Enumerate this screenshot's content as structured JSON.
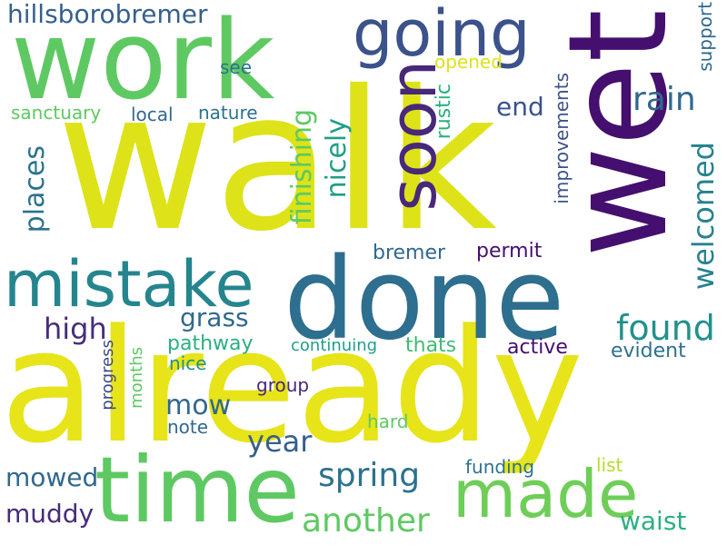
{
  "words": [
    {
      "text": "walk",
      "color": "#dde318"
    },
    {
      "text": "already",
      "color": "#e7e419"
    },
    {
      "text": "work",
      "color": "#5ec962"
    },
    {
      "text": "wet",
      "color": "#440f6e"
    },
    {
      "text": "done",
      "color": "#2e6e8e"
    },
    {
      "text": "time",
      "color": "#5ec962"
    },
    {
      "text": "going",
      "color": "#3b528b"
    },
    {
      "text": "mistake",
      "color": "#25858e"
    },
    {
      "text": "made",
      "color": "#6ece58"
    },
    {
      "text": "soon",
      "color": "#482878"
    },
    {
      "text": "found",
      "color": "#21918c"
    },
    {
      "text": "rain",
      "color": "#31688e"
    },
    {
      "text": "another",
      "color": "#5ec962"
    },
    {
      "text": "spring",
      "color": "#2c728e"
    },
    {
      "text": "hillsborobremer",
      "color": "#355f8d"
    },
    {
      "text": "welcomed",
      "color": "#26828e"
    },
    {
      "text": "nicely",
      "color": "#1f9e89"
    },
    {
      "text": "finishing",
      "color": "#5ec962"
    },
    {
      "text": "places",
      "color": "#2c728e"
    },
    {
      "text": "high",
      "color": "#472d7b"
    },
    {
      "text": "year",
      "color": "#355f8d"
    },
    {
      "text": "grass",
      "color": "#31688e"
    },
    {
      "text": "mow",
      "color": "#31688e"
    },
    {
      "text": "waist",
      "color": "#2ab07f"
    },
    {
      "text": "muddy",
      "color": "#472d7b"
    },
    {
      "text": "mowed",
      "color": "#31688e"
    },
    {
      "text": "end",
      "color": "#3b528b"
    },
    {
      "text": "rustic",
      "color": "#2ab07f"
    },
    {
      "text": "pathway",
      "color": "#2ab07f"
    },
    {
      "text": "active",
      "color": "#440f6e"
    },
    {
      "text": "evident",
      "color": "#2c728e"
    },
    {
      "text": "thats",
      "color": "#3fbc73"
    },
    {
      "text": "bremer",
      "color": "#31688e"
    },
    {
      "text": "permit",
      "color": "#440f6e"
    },
    {
      "text": "improvements",
      "color": "#3b528b"
    },
    {
      "text": "support",
      "color": "#31688e"
    },
    {
      "text": "sanctuary",
      "color": "#5ec962"
    },
    {
      "text": "local",
      "color": "#31688e"
    },
    {
      "text": "nature",
      "color": "#2c728e"
    },
    {
      "text": "opened",
      "color": "#dde318"
    },
    {
      "text": "see",
      "color": "#2c728e"
    },
    {
      "text": "continuing",
      "color": "#1f9e89"
    },
    {
      "text": "nice",
      "color": "#21918c"
    },
    {
      "text": "group",
      "color": "#482878"
    },
    {
      "text": "note",
      "color": "#31688e"
    },
    {
      "text": "hard",
      "color": "#5ec962"
    },
    {
      "text": "funding",
      "color": "#2c728e"
    },
    {
      "text": "list",
      "color": "#b5de2b"
    },
    {
      "text": "progress",
      "color": "#3e4989"
    },
    {
      "text": "months",
      "color": "#5ec962"
    }
  ]
}
